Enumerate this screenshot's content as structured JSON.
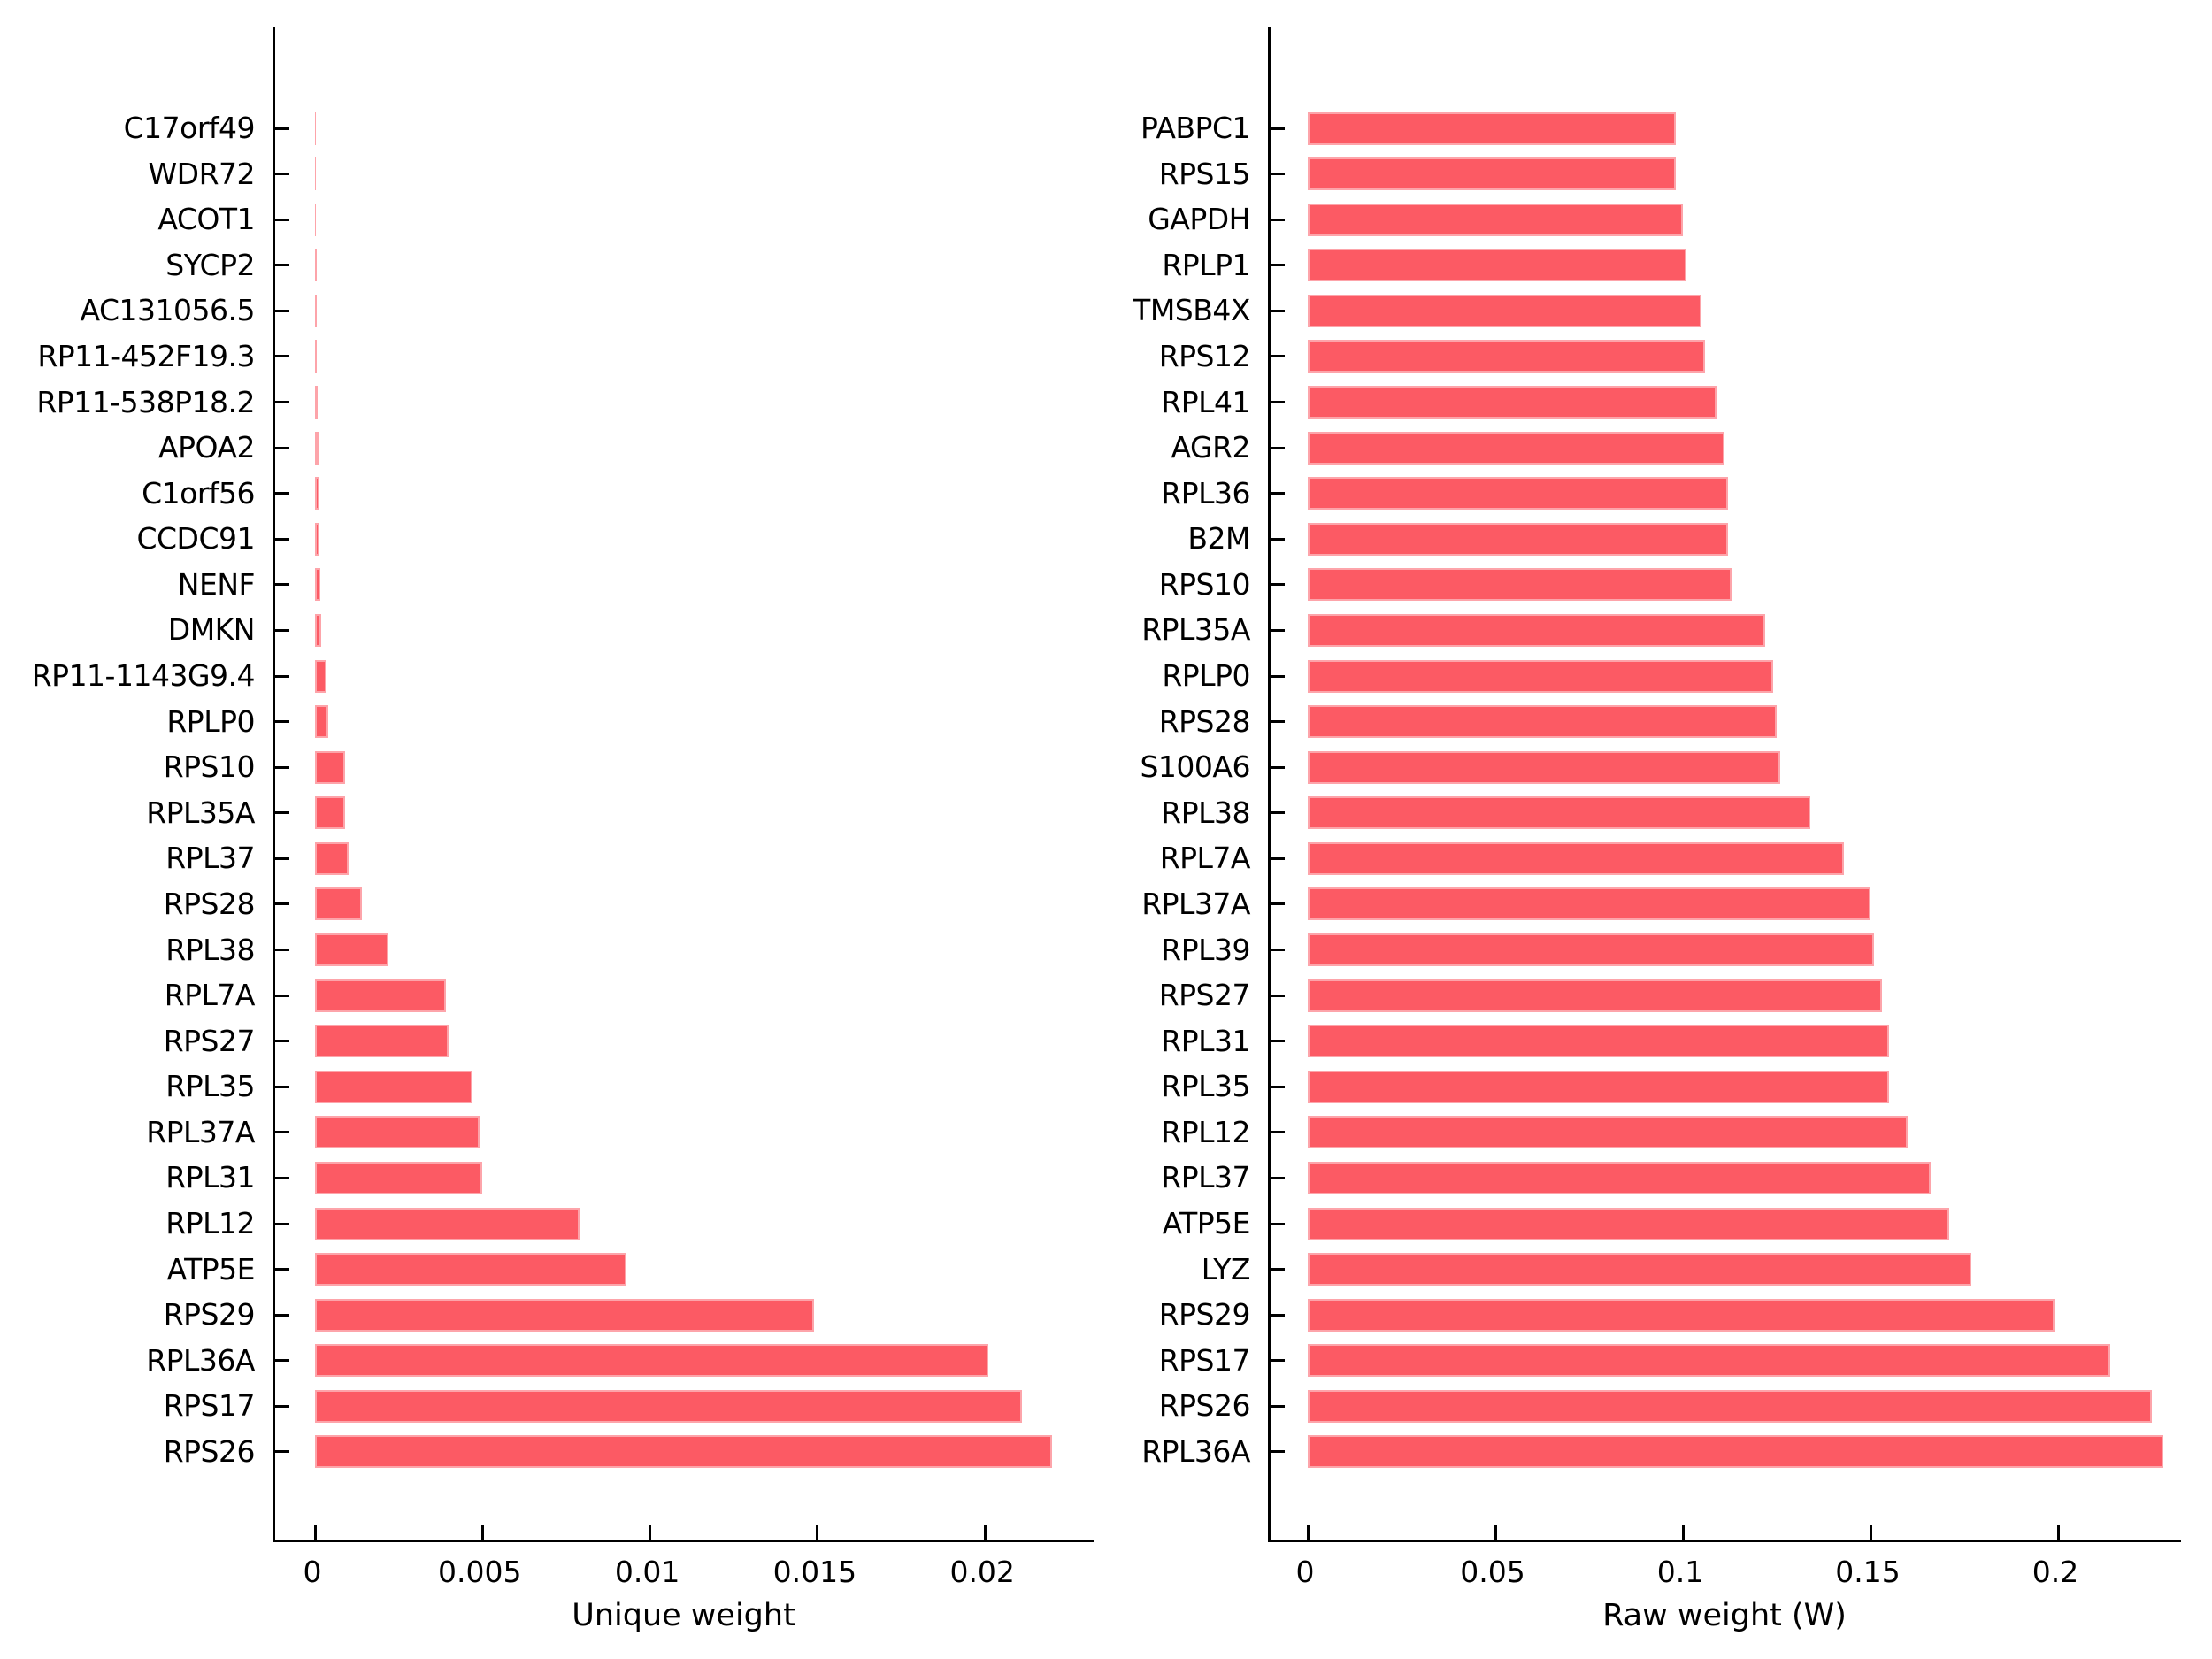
{
  "chart_data": [
    {
      "type": "bar",
      "orientation": "horizontal",
      "title": "",
      "xlabel": "Unique weight",
      "ylabel": "",
      "bar_color": "#fc5a64",
      "axis_color": "#000000",
      "background": "#ffffff",
      "grid": false,
      "legend": null,
      "xlim": [
        0,
        0.0234
      ],
      "xticks": [
        0,
        0.005,
        0.01,
        0.015,
        0.02
      ],
      "xtick_labels": [
        "0",
        "0.005",
        "0.01",
        "0.015",
        "0.02"
      ],
      "categories": [
        "C17orf49",
        "WDR72",
        "ACOT1",
        "SYCP2",
        "AC131056.5",
        "RP11-452F19.3",
        "RP11-538P18.2",
        "APOA2",
        "C1orf56",
        "CCDC91",
        "NENF",
        "DMKN",
        "RP11-1143G9.4",
        "RPLP0",
        "RPS10",
        "RPL35A",
        "RPL37",
        "RPS28",
        "RPL38",
        "RPL7A",
        "RPS27",
        "RPL35",
        "RPL37A",
        "RPL31",
        "RPL12",
        "ATP5E",
        "RPS29",
        "RPL36A",
        "RPS17",
        "RPS26"
      ],
      "values": [
        1e-05,
        2e-05,
        3e-05,
        4e-05,
        5e-05,
        6e-05,
        8e-05,
        0.0001,
        0.00012,
        0.00014,
        0.00016,
        0.00018,
        0.00035,
        0.0004,
        0.0009,
        0.0009,
        0.001,
        0.0014,
        0.0022,
        0.0039,
        0.004,
        0.0047,
        0.0049,
        0.005,
        0.0079,
        0.0093,
        0.0149,
        0.0201,
        0.0211,
        0.022
      ]
    },
    {
      "type": "bar",
      "orientation": "horizontal",
      "title": "",
      "xlabel": "Raw weight (W)",
      "ylabel": "",
      "bar_color": "#fc5a64",
      "axis_color": "#000000",
      "background": "#ffffff",
      "grid": false,
      "legend": null,
      "xlim": [
        0,
        0.2335
      ],
      "xticks": [
        0,
        0.05,
        0.1,
        0.15,
        0.2
      ],
      "xtick_labels": [
        "0",
        "0.05",
        "0.1",
        "0.15",
        "0.2"
      ],
      "categories": [
        "PABPC1",
        "RPS15",
        "GAPDH",
        "RPLP1",
        "TMSB4X",
        "RPS12",
        "RPL41",
        "AGR2",
        "RPL36",
        "B2M",
        "RPS10",
        "RPL35A",
        "RPLP0",
        "RPS28",
        "S100A6",
        "RPL38",
        "RPL7A",
        "RPL37A",
        "RPL39",
        "RPS27",
        "RPL31",
        "RPL35",
        "RPL12",
        "RPL37",
        "ATP5E",
        "LYZ",
        "RPS29",
        "RPS17",
        "RPS26",
        "RPL36A"
      ],
      "values": [
        0.098,
        0.098,
        0.1,
        0.101,
        0.105,
        0.106,
        0.109,
        0.111,
        0.112,
        0.112,
        0.113,
        0.122,
        0.124,
        0.125,
        0.126,
        0.134,
        0.143,
        0.15,
        0.151,
        0.153,
        0.155,
        0.155,
        0.16,
        0.166,
        0.171,
        0.177,
        0.199,
        0.214,
        0.225,
        0.228
      ]
    }
  ]
}
